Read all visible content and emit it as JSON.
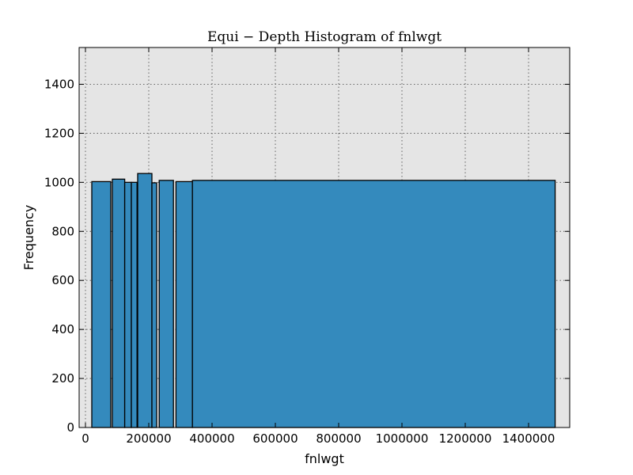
{
  "chart_data": {
    "type": "bar",
    "title": "Equi − Depth Histogram of fnlwgt",
    "xlabel": "fnlwgt",
    "ylabel": "Frequency",
    "xlim": [
      -20000,
      1530000
    ],
    "ylim": [
      0,
      1550
    ],
    "xticks": [
      0,
      200000,
      400000,
      600000,
      800000,
      1000000,
      1200000,
      1400000
    ],
    "yticks": [
      0,
      200,
      400,
      600,
      800,
      1000,
      1200,
      1400
    ],
    "grid": true,
    "bar_color": "#348abd",
    "plot_background": "#e5e5e5",
    "bins": [
      {
        "x0": 20000,
        "x1": 80000,
        "value": 1003
      },
      {
        "x0": 85000,
        "x1": 124000,
        "value": 1013
      },
      {
        "x0": 124000,
        "x1": 145000,
        "value": 1000
      },
      {
        "x0": 145000,
        "x1": 163000,
        "value": 1000
      },
      {
        "x0": 165000,
        "x1": 210000,
        "value": 1036
      },
      {
        "x0": 210000,
        "x1": 225000,
        "value": 998
      },
      {
        "x0": 233000,
        "x1": 278000,
        "value": 1008
      },
      {
        "x0": 286000,
        "x1": 338000,
        "value": 1003
      },
      {
        "x0": 338000,
        "x1": 1484000,
        "value": 1008
      }
    ]
  }
}
